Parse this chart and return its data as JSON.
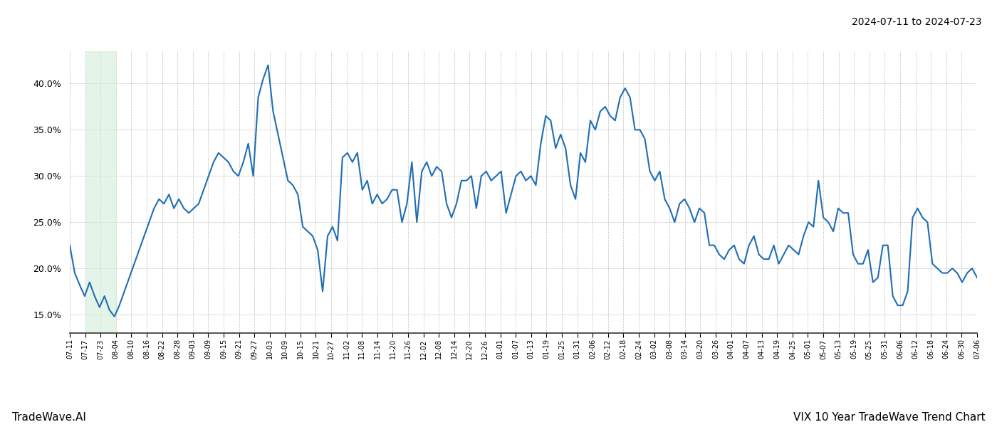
{
  "title_top_right": "2024-07-11 to 2024-07-23",
  "title_bottom_left": "TradeWave.AI",
  "title_bottom_right": "VIX 10 Year TradeWave Trend Chart",
  "line_color": "#1f6eb5",
  "line_width": 1.5,
  "background_color": "#ffffff",
  "grid_color": "#b8b8b8",
  "highlight_color": "#d4edda",
  "highlight_alpha": 0.6,
  "ylim": [
    13.0,
    43.5
  ],
  "yticks": [
    15.0,
    20.0,
    25.0,
    30.0,
    35.0,
    40.0
  ],
  "xtick_labels": [
    "07-11",
    "07-17",
    "07-23",
    "08-04",
    "08-10",
    "08-16",
    "08-22",
    "08-28",
    "09-03",
    "09-09",
    "09-15",
    "09-21",
    "09-27",
    "10-03",
    "10-09",
    "10-15",
    "10-21",
    "10-27",
    "11-02",
    "11-08",
    "11-14",
    "11-20",
    "11-26",
    "12-02",
    "12-08",
    "12-14",
    "12-20",
    "12-26",
    "01-01",
    "01-07",
    "01-13",
    "01-19",
    "01-25",
    "01-31",
    "02-06",
    "02-12",
    "02-18",
    "02-24",
    "03-02",
    "03-08",
    "03-14",
    "03-20",
    "03-26",
    "04-01",
    "04-07",
    "04-13",
    "04-19",
    "04-25",
    "05-01",
    "05-07",
    "05-13",
    "05-19",
    "05-25",
    "05-31",
    "06-06",
    "06-12",
    "06-18",
    "06-24",
    "06-30",
    "07-06"
  ],
  "values": [
    22.5,
    19.5,
    18.2,
    17.0,
    18.5,
    17.0,
    15.8,
    17.0,
    15.5,
    14.8,
    16.0,
    17.5,
    19.0,
    20.5,
    22.0,
    23.5,
    25.0,
    26.5,
    27.5,
    27.0,
    28.0,
    26.5,
    27.5,
    26.5,
    26.0,
    26.5,
    27.0,
    28.5,
    30.0,
    31.5,
    32.5,
    32.0,
    31.5,
    30.5,
    30.0,
    31.5,
    33.5,
    30.0,
    38.5,
    40.5,
    42.0,
    37.0,
    34.5,
    32.0,
    29.5,
    29.0,
    28.0,
    24.5,
    24.0,
    23.5,
    22.0,
    17.5,
    23.5,
    24.5,
    23.0,
    32.0,
    32.5,
    31.5,
    32.5,
    28.5,
    29.5,
    27.0,
    28.0,
    27.0,
    27.5,
    28.5,
    28.5,
    25.0,
    27.0,
    31.5,
    25.0,
    30.5,
    31.5,
    30.0,
    31.0,
    30.5,
    27.0,
    25.5,
    27.0,
    29.5,
    29.5,
    30.0,
    26.5,
    30.0,
    30.5,
    29.5,
    30.0,
    30.5,
    26.0,
    28.0,
    30.0,
    30.5,
    29.5,
    30.0,
    29.0,
    33.5,
    36.5,
    36.0,
    33.0,
    34.5,
    33.0,
    29.0,
    27.5,
    32.5,
    31.5,
    36.0,
    35.0,
    37.0,
    37.5,
    36.5,
    36.0,
    38.5,
    39.5,
    38.5,
    35.0,
    35.0,
    34.0,
    30.5,
    29.5,
    30.5,
    27.5,
    26.5,
    25.0,
    27.0,
    27.5,
    26.5,
    25.0,
    26.5,
    26.0,
    22.5,
    22.5,
    21.5,
    21.0,
    22.0,
    22.5,
    21.0,
    20.5,
    22.5,
    23.5,
    21.5,
    21.0,
    21.0,
    22.5,
    20.5,
    21.5,
    22.5,
    22.0,
    21.5,
    23.5,
    25.0,
    24.5,
    29.5,
    25.5,
    25.0,
    24.0,
    26.5,
    26.0,
    26.0,
    21.5,
    20.5,
    20.5,
    22.0,
    18.5,
    19.0,
    22.5,
    22.5,
    17.0,
    16.0,
    16.0,
    17.5,
    25.5,
    26.5,
    25.5,
    25.0,
    20.5,
    20.0,
    19.5,
    19.5,
    20.0,
    19.5,
    18.5,
    19.5,
    20.0,
    19.0
  ],
  "highlight_xstart": 1,
  "highlight_xend": 3,
  "n_per_label": 1
}
